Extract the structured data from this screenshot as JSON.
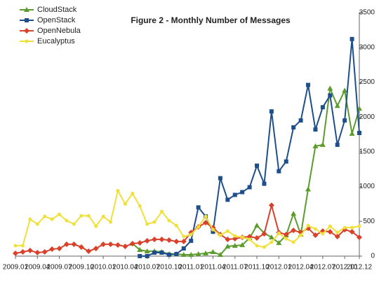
{
  "chart_data": {
    "type": "line",
    "title": "Figure 2 - Monthly Number of Messages",
    "categories": [
      "2009.01",
      null,
      null,
      "2009.04",
      null,
      null,
      "2009.07",
      null,
      null,
      "2009.10",
      null,
      null,
      "2010.01",
      null,
      null,
      "2010.04",
      null,
      null,
      "2010.07",
      null,
      null,
      "2010.10",
      null,
      null,
      "2011.01",
      null,
      null,
      "2011.04",
      null,
      null,
      "2011.07",
      null,
      null,
      "2011.10",
      null,
      null,
      "2012.01",
      null,
      null,
      "2012.04",
      null,
      null,
      "2012.07",
      null,
      null,
      "2012.10",
      null,
      "2012.12"
    ],
    "series": [
      {
        "name": "CloudStack",
        "color": "#5b9c2c",
        "values": [
          null,
          null,
          null,
          null,
          null,
          null,
          null,
          null,
          null,
          null,
          null,
          null,
          null,
          null,
          null,
          null,
          180,
          90,
          70,
          70,
          60,
          30,
          30,
          20,
          20,
          30,
          40,
          60,
          20,
          140,
          150,
          160,
          260,
          440,
          330,
          270,
          190,
          300,
          610,
          310,
          960,
          1580,
          1600,
          2410,
          2160,
          2380,
          1760,
          2120
        ]
      },
      {
        "name": "OpenStack",
        "color": "#1f4e8c",
        "values": [
          null,
          null,
          null,
          null,
          null,
          null,
          null,
          null,
          null,
          null,
          null,
          null,
          null,
          null,
          null,
          null,
          null,
          0,
          0,
          50,
          50,
          20,
          30,
          110,
          220,
          700,
          570,
          350,
          1120,
          810,
          880,
          920,
          990,
          1300,
          1040,
          2080,
          1220,
          1360,
          1850,
          1950,
          2460,
          1820,
          2140,
          2310,
          1600,
          1950,
          3120,
          1770
        ]
      },
      {
        "name": "OpenNebula",
        "color": "#d9412b",
        "values": [
          40,
          60,
          80,
          50,
          60,
          100,
          110,
          170,
          170,
          130,
          70,
          110,
          170,
          170,
          160,
          140,
          180,
          190,
          220,
          240,
          240,
          230,
          210,
          210,
          340,
          420,
          480,
          410,
          310,
          240,
          250,
          270,
          280,
          260,
          320,
          730,
          340,
          310,
          370,
          340,
          400,
          300,
          360,
          350,
          280,
          380,
          350,
          270
        ]
      },
      {
        "name": "Eucalyptus",
        "color": "#f0e03a",
        "values": [
          150,
          150,
          530,
          460,
          570,
          530,
          600,
          510,
          460,
          580,
          580,
          430,
          570,
          490,
          940,
          750,
          900,
          720,
          460,
          490,
          640,
          510,
          440,
          280,
          310,
          420,
          570,
          380,
          300,
          360,
          290,
          270,
          240,
          150,
          130,
          200,
          330,
          250,
          200,
          300,
          440,
          390,
          320,
          430,
          340,
          410,
          410,
          430
        ]
      }
    ],
    "ylim": [
      0,
      3500
    ],
    "yticks": [
      0,
      500,
      1000,
      1500,
      2000,
      2500,
      3000,
      3500
    ],
    "y_axis_side": "right",
    "legend": "upper left"
  }
}
